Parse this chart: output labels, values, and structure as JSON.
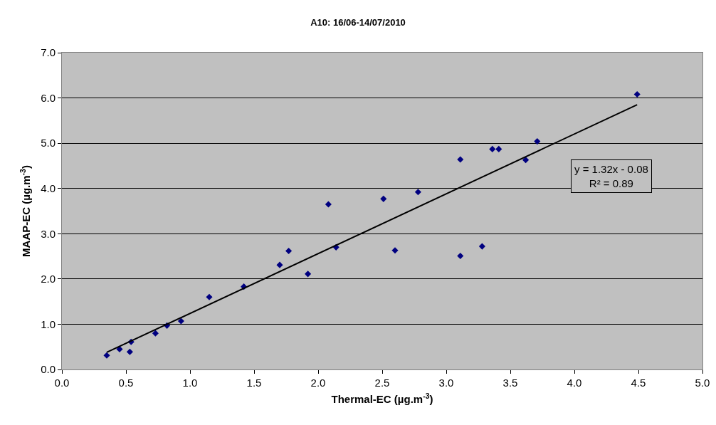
{
  "chart_data": {
    "type": "scatter",
    "title": "A10: 16/06-14/07/2010",
    "xlabel": "Thermal-EC (µg.m$^{-3}$)",
    "ylabel": "MAAP-EC (µg.m$^{-3}$)",
    "x": [
      0.35,
      0.45,
      0.53,
      0.54,
      0.73,
      0.82,
      0.93,
      1.15,
      1.42,
      1.7,
      1.77,
      1.92,
      2.08,
      2.14,
      2.51,
      2.6,
      2.78,
      3.11,
      3.11,
      3.28,
      3.36,
      3.41,
      3.62,
      3.71,
      4.49
    ],
    "series": [
      {
        "color": "#000080",
        "values": [
          0.31,
          0.45,
          0.39,
          0.61,
          0.8,
          0.97,
          1.07,
          1.6,
          1.83,
          2.31,
          2.62,
          2.11,
          3.65,
          2.7,
          3.77,
          2.63,
          3.92,
          4.64,
          2.51,
          2.72,
          4.87,
          4.87,
          4.63,
          5.04,
          6.08
        ]
      },
      {
        "type": "line",
        "color": "#000000",
        "marker": "none",
        "x": [
          0.35,
          4.49
        ],
        "values": [
          0.38,
          5.85
        ]
      }
    ],
    "annotations": [
      "y = 1.32x - 0.08",
      "R² = 0.89"
    ],
    "xlim": [
      0,
      5
    ],
    "xticks": [
      {
        "value": 0,
        "label": "0.0"
      },
      {
        "value": 0.5,
        "label": "0.5"
      },
      {
        "value": 1,
        "label": "1.0"
      },
      {
        "value": 1.5,
        "label": "1.5"
      },
      {
        "value": 2,
        "label": "2.0"
      },
      {
        "value": 2.5,
        "label": "2.5"
      },
      {
        "value": 3,
        "label": "3.0"
      },
      {
        "value": 3.5,
        "label": "3.5"
      },
      {
        "value": 4,
        "label": "4.0"
      },
      {
        "value": 4.5,
        "label": "4.5"
      },
      {
        "value": 5,
        "label": "5.0"
      }
    ],
    "ylim": [
      0,
      7
    ],
    "yticks": [
      {
        "value": 0,
        "label": "0.0"
      },
      {
        "value": 1,
        "label": "1.0"
      },
      {
        "value": 2,
        "label": "2.0"
      },
      {
        "value": 3,
        "label": "3.0"
      },
      {
        "value": 4,
        "label": "4.0"
      },
      {
        "value": 5,
        "label": "5.0"
      },
      {
        "value": 6,
        "label": "6.0"
      },
      {
        "value": 7,
        "label": "7.0"
      }
    ],
    "grid": "y",
    "marker": "diamond",
    "line_style": "solid"
  }
}
